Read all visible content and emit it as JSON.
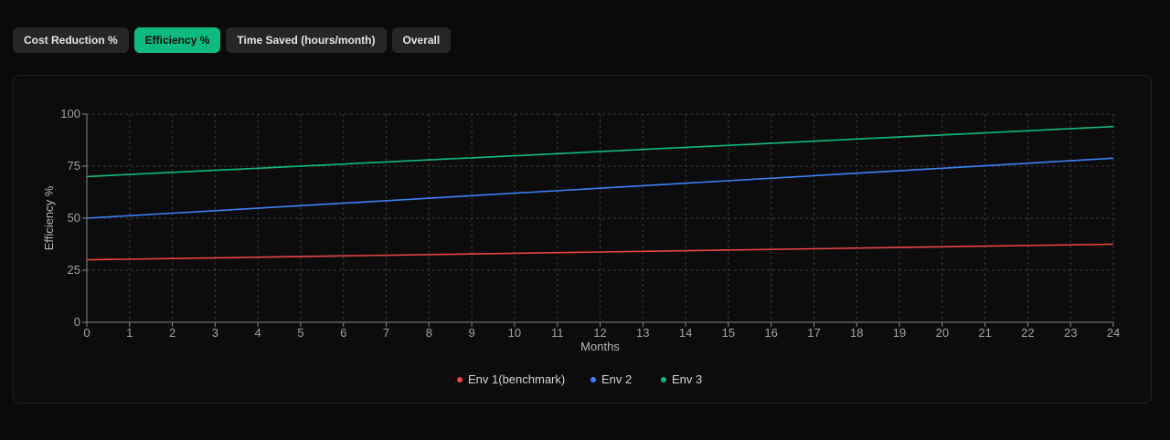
{
  "tabs": [
    {
      "label": "Cost Reduction %",
      "active": false
    },
    {
      "label": "Efficiency %",
      "active": true
    },
    {
      "label": "Time Saved (hours/month)",
      "active": false
    },
    {
      "label": "Overall",
      "active": false
    }
  ],
  "chart_data": {
    "type": "line",
    "xlabel": "Months",
    "ylabel": "Efficiency %",
    "xlim": [
      0,
      24
    ],
    "ylim": [
      0,
      100
    ],
    "x_ticks": [
      0,
      1,
      2,
      3,
      4,
      5,
      6,
      7,
      8,
      9,
      10,
      11,
      12,
      13,
      14,
      15,
      16,
      17,
      18,
      19,
      20,
      21,
      22,
      23,
      24
    ],
    "y_ticks": [
      0,
      25,
      50,
      75,
      100
    ],
    "grid": true,
    "legend_position": "bottom-center",
    "series": [
      {
        "name": "Env 1(benchmark)",
        "color": "#ef4444",
        "x": [
          0,
          24
        ],
        "values": [
          30,
          37.5
        ]
      },
      {
        "name": "Env 2",
        "color": "#3b82f6",
        "x": [
          0,
          24
        ],
        "values": [
          50,
          78.8
        ]
      },
      {
        "name": "Env 3",
        "color": "#10b981",
        "x": [
          0,
          24
        ],
        "values": [
          70,
          94
        ]
      }
    ]
  }
}
